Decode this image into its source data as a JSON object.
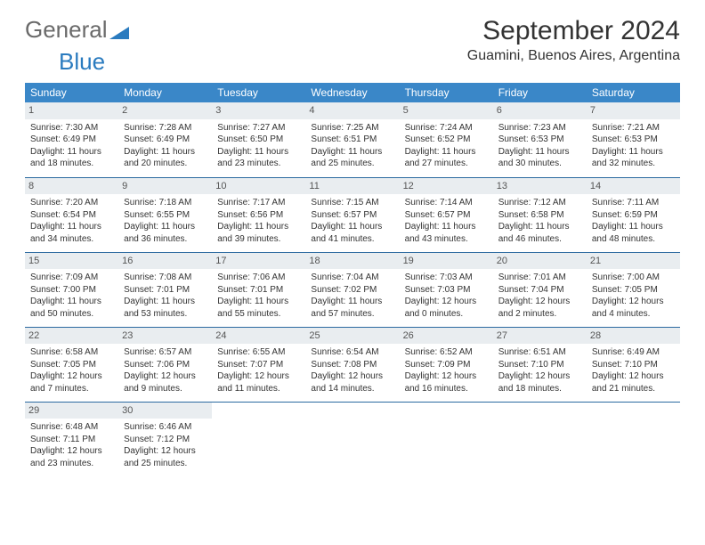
{
  "logo": {
    "text1": "General",
    "text2": "Blue"
  },
  "month_title": "September 2024",
  "location": "Guamini, Buenos Aires, Argentina",
  "colors": {
    "header_bg": "#3a87c8",
    "daynum_bg": "#e9edf0",
    "row_border": "#2b6aa0",
    "logo_general": "#6a6a6a",
    "logo_blue": "#2a7bbf"
  },
  "day_headers": [
    "Sunday",
    "Monday",
    "Tuesday",
    "Wednesday",
    "Thursday",
    "Friday",
    "Saturday"
  ],
  "weeks": [
    [
      {
        "n": "1",
        "sr": "7:30 AM",
        "ss": "6:49 PM",
        "dl": "11 hours and 18 minutes."
      },
      {
        "n": "2",
        "sr": "7:28 AM",
        "ss": "6:49 PM",
        "dl": "11 hours and 20 minutes."
      },
      {
        "n": "3",
        "sr": "7:27 AM",
        "ss": "6:50 PM",
        "dl": "11 hours and 23 minutes."
      },
      {
        "n": "4",
        "sr": "7:25 AM",
        "ss": "6:51 PM",
        "dl": "11 hours and 25 minutes."
      },
      {
        "n": "5",
        "sr": "7:24 AM",
        "ss": "6:52 PM",
        "dl": "11 hours and 27 minutes."
      },
      {
        "n": "6",
        "sr": "7:23 AM",
        "ss": "6:53 PM",
        "dl": "11 hours and 30 minutes."
      },
      {
        "n": "7",
        "sr": "7:21 AM",
        "ss": "6:53 PM",
        "dl": "11 hours and 32 minutes."
      }
    ],
    [
      {
        "n": "8",
        "sr": "7:20 AM",
        "ss": "6:54 PM",
        "dl": "11 hours and 34 minutes."
      },
      {
        "n": "9",
        "sr": "7:18 AM",
        "ss": "6:55 PM",
        "dl": "11 hours and 36 minutes."
      },
      {
        "n": "10",
        "sr": "7:17 AM",
        "ss": "6:56 PM",
        "dl": "11 hours and 39 minutes."
      },
      {
        "n": "11",
        "sr": "7:15 AM",
        "ss": "6:57 PM",
        "dl": "11 hours and 41 minutes."
      },
      {
        "n": "12",
        "sr": "7:14 AM",
        "ss": "6:57 PM",
        "dl": "11 hours and 43 minutes."
      },
      {
        "n": "13",
        "sr": "7:12 AM",
        "ss": "6:58 PM",
        "dl": "11 hours and 46 minutes."
      },
      {
        "n": "14",
        "sr": "7:11 AM",
        "ss": "6:59 PM",
        "dl": "11 hours and 48 minutes."
      }
    ],
    [
      {
        "n": "15",
        "sr": "7:09 AM",
        "ss": "7:00 PM",
        "dl": "11 hours and 50 minutes."
      },
      {
        "n": "16",
        "sr": "7:08 AM",
        "ss": "7:01 PM",
        "dl": "11 hours and 53 minutes."
      },
      {
        "n": "17",
        "sr": "7:06 AM",
        "ss": "7:01 PM",
        "dl": "11 hours and 55 minutes."
      },
      {
        "n": "18",
        "sr": "7:04 AM",
        "ss": "7:02 PM",
        "dl": "11 hours and 57 minutes."
      },
      {
        "n": "19",
        "sr": "7:03 AM",
        "ss": "7:03 PM",
        "dl": "12 hours and 0 minutes."
      },
      {
        "n": "20",
        "sr": "7:01 AM",
        "ss": "7:04 PM",
        "dl": "12 hours and 2 minutes."
      },
      {
        "n": "21",
        "sr": "7:00 AM",
        "ss": "7:05 PM",
        "dl": "12 hours and 4 minutes."
      }
    ],
    [
      {
        "n": "22",
        "sr": "6:58 AM",
        "ss": "7:05 PM",
        "dl": "12 hours and 7 minutes."
      },
      {
        "n": "23",
        "sr": "6:57 AM",
        "ss": "7:06 PM",
        "dl": "12 hours and 9 minutes."
      },
      {
        "n": "24",
        "sr": "6:55 AM",
        "ss": "7:07 PM",
        "dl": "12 hours and 11 minutes."
      },
      {
        "n": "25",
        "sr": "6:54 AM",
        "ss": "7:08 PM",
        "dl": "12 hours and 14 minutes."
      },
      {
        "n": "26",
        "sr": "6:52 AM",
        "ss": "7:09 PM",
        "dl": "12 hours and 16 minutes."
      },
      {
        "n": "27",
        "sr": "6:51 AM",
        "ss": "7:10 PM",
        "dl": "12 hours and 18 minutes."
      },
      {
        "n": "28",
        "sr": "6:49 AM",
        "ss": "7:10 PM",
        "dl": "12 hours and 21 minutes."
      }
    ],
    [
      {
        "n": "29",
        "sr": "6:48 AM",
        "ss": "7:11 PM",
        "dl": "12 hours and 23 minutes."
      },
      {
        "n": "30",
        "sr": "6:46 AM",
        "ss": "7:12 PM",
        "dl": "12 hours and 25 minutes."
      },
      null,
      null,
      null,
      null,
      null
    ]
  ],
  "labels": {
    "sunrise": "Sunrise: ",
    "sunset": "Sunset: ",
    "daylight": "Daylight: "
  }
}
